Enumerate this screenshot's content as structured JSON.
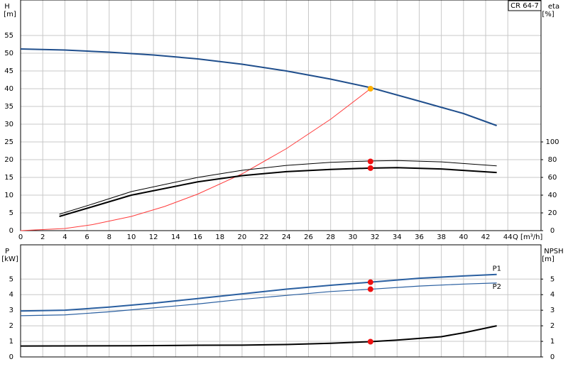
{
  "chart_data": [
    {
      "type": "line",
      "label": "CR 64-7",
      "y_label": "H",
      "y_unit": "[m]",
      "y2_label": "eta",
      "y2_unit": "[%]",
      "x_label": "Q [m³/h]",
      "xlim": [
        0,
        47
      ],
      "xticks": [
        0,
        2,
        4,
        6,
        8,
        10,
        12,
        14,
        16,
        18,
        20,
        22,
        24,
        26,
        28,
        30,
        32,
        34,
        36,
        38,
        40,
        42,
        44
      ],
      "ylim": [
        0,
        65
      ],
      "yticks": [
        0,
        5,
        10,
        15,
        20,
        25,
        30,
        35,
        40,
        45,
        50,
        55
      ],
      "y2lim": [
        0,
        260
      ],
      "y2ticks": [
        0,
        20,
        40,
        60,
        80,
        100
      ],
      "grid": true,
      "series": [
        {
          "color": "#1f4e8c",
          "width": 2,
          "x": [
            0,
            4,
            8,
            12,
            16,
            20,
            24,
            28,
            31.6,
            36,
            40,
            43
          ],
          "values": [
            51.2,
            50.9,
            50.3,
            49.5,
            48.4,
            46.9,
            45,
            42.7,
            40.3,
            36.5,
            33,
            29.6
          ]
        },
        {
          "color": "#ff3b3b",
          "width": 1,
          "x": [
            0,
            4,
            6.5,
            10,
            13,
            16,
            20,
            24,
            28,
            31.6
          ],
          "values": [
            0,
            0.6,
            1.7,
            4,
            6.8,
            10.3,
            16,
            23.1,
            31.4,
            40
          ]
        },
        {
          "color": "#000000",
          "width": 1,
          "axis": "y2",
          "x": [
            3.5,
            6.5,
            10,
            16,
            20,
            24,
            28,
            31.6,
            34,
            38,
            43
          ],
          "values": [
            18.5,
            30,
            44,
            60,
            68,
            73.5,
            77,
            78.5,
            79,
            77.5,
            73
          ]
        },
        {
          "color": "#000000",
          "width": 2,
          "axis": "y2",
          "x": [
            3.5,
            6.5,
            10,
            16,
            20,
            24,
            28,
            31.6,
            34,
            38,
            43
          ],
          "values": [
            16,
            27,
            40,
            55,
            62,
            66.5,
            69,
            70.5,
            71,
            69.5,
            65.5
          ]
        }
      ],
      "markers": [
        {
          "x": 31.6,
          "y": 40,
          "color": "#ffb000"
        },
        {
          "x": 31.6,
          "y": 78,
          "axis": "y2",
          "color": "#ee1111"
        },
        {
          "x": 31.6,
          "y": 70.5,
          "axis": "y2",
          "color": "#ee1111"
        }
      ]
    },
    {
      "type": "line",
      "y_label": "P",
      "y_unit": "[kW]",
      "y2_label": "NPSH",
      "y2_unit": "[m]",
      "xlim": [
        0,
        47
      ],
      "xticks": [
        0,
        2,
        4,
        6,
        8,
        10,
        12,
        14,
        16,
        18,
        20,
        22,
        24,
        26,
        28,
        30,
        32,
        34,
        36,
        38,
        40,
        42,
        44
      ],
      "ylim": [
        0,
        7.2
      ],
      "yticks": [
        0,
        1,
        2,
        3,
        4,
        5
      ],
      "y2lim": [
        0,
        7.2
      ],
      "y2ticks": [
        0,
        1,
        2,
        3,
        4,
        5
      ],
      "grid": true,
      "series": [
        {
          "name": "P1",
          "color": "#2a5fa0",
          "width": 2,
          "x": [
            0,
            4,
            8,
            12,
            16,
            20,
            24,
            28,
            31.6,
            36,
            40,
            43
          ],
          "values": [
            2.95,
            3,
            3.2,
            3.45,
            3.75,
            4.05,
            4.35,
            4.6,
            4.8,
            5.05,
            5.2,
            5.3
          ]
        },
        {
          "name": "P2",
          "color": "#2a5fa0",
          "width": 1.2,
          "x": [
            0,
            4,
            8,
            12,
            16,
            20,
            24,
            28,
            31.6,
            36,
            40,
            43
          ],
          "values": [
            2.65,
            2.7,
            2.9,
            3.15,
            3.4,
            3.7,
            3.95,
            4.2,
            4.35,
            4.55,
            4.68,
            4.75
          ]
        },
        {
          "color": "#000000",
          "width": 2,
          "axis": "y2",
          "x": [
            0,
            10,
            16,
            20,
            24,
            28,
            31.6,
            34,
            38,
            40,
            43
          ],
          "values": [
            0.7,
            0.72,
            0.75,
            0.76,
            0.8,
            0.88,
            0.98,
            1.08,
            1.3,
            1.55,
            2
          ]
        }
      ],
      "markers": [
        {
          "x": 31.6,
          "y": 4.8,
          "color": "#ee1111"
        },
        {
          "x": 31.6,
          "y": 4.35,
          "color": "#ee1111"
        },
        {
          "x": 31.6,
          "y": 0.98,
          "axis": "y2",
          "color": "#ee1111"
        }
      ]
    }
  ]
}
